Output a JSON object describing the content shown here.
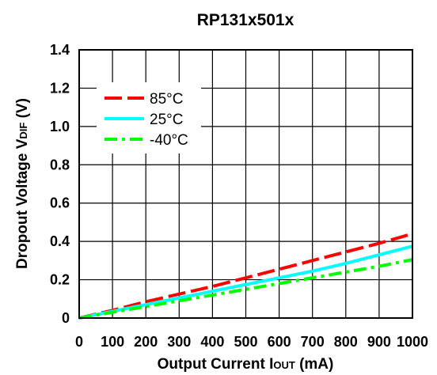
{
  "chart_data": {
    "type": "line",
    "title": "RP131x501x",
    "xlabel": {
      "prefix": "Output Current I",
      "sub": "OUT",
      "suffix": " (mA)"
    },
    "ylabel": {
      "prefix": "Dropout Voltage V",
      "sub": "DIF",
      "suffix": " (V)"
    },
    "xlim": [
      0,
      1000
    ],
    "ylim": [
      0,
      1.4
    ],
    "xticks": [
      0,
      100,
      200,
      300,
      400,
      500,
      600,
      700,
      800,
      900,
      1000
    ],
    "yticks": [
      0,
      0.2,
      0.4,
      0.6,
      0.8,
      1.0,
      1.2,
      1.4
    ],
    "xtick_labels": [
      "0",
      "100",
      "200",
      "300",
      "400",
      "500",
      "600",
      "700",
      "800",
      "900",
      "1000"
    ],
    "ytick_labels": [
      "0",
      "0.2",
      "0.4",
      "0.6",
      "0.8",
      "1.0",
      "1.2",
      "1.4"
    ],
    "grid": true,
    "legend_position": "top-left",
    "series": [
      {
        "name": "85°C",
        "color": "#ff0000",
        "dash": "dashed",
        "x": [
          0,
          100,
          200,
          300,
          400,
          500,
          600,
          700,
          800,
          900,
          1000
        ],
        "y": [
          0,
          0.04,
          0.085,
          0.125,
          0.165,
          0.21,
          0.255,
          0.3,
          0.345,
          0.39,
          0.44
        ]
      },
      {
        "name": "25°C",
        "color": "#00ffff",
        "dash": "solid",
        "x": [
          0,
          100,
          200,
          300,
          400,
          500,
          600,
          700,
          800,
          900,
          1000
        ],
        "y": [
          0,
          0.035,
          0.07,
          0.105,
          0.14,
          0.175,
          0.21,
          0.245,
          0.285,
          0.33,
          0.375
        ]
      },
      {
        "name": "-40°C",
        "color": "#00ff00",
        "dash": "dashdot",
        "x": [
          0,
          100,
          200,
          300,
          400,
          500,
          600,
          700,
          800,
          900,
          1000
        ],
        "y": [
          0,
          0.03,
          0.06,
          0.09,
          0.12,
          0.15,
          0.18,
          0.21,
          0.24,
          0.27,
          0.305
        ]
      }
    ]
  }
}
